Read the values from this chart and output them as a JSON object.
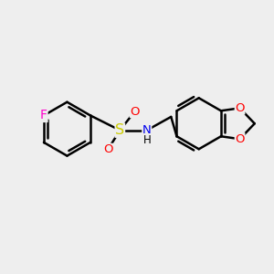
{
  "bg_color": "#eeeeee",
  "bond_color": "#000000",
  "bond_width": 1.8,
  "atom_colors": {
    "F": "#ff00cc",
    "S": "#cccc00",
    "O": "#ff0000",
    "N": "#0000ee",
    "H": "#000000"
  },
  "font_size": 9.5,
  "fig_size": [
    3.0,
    3.0
  ],
  "dpi": 100,
  "xlim": [
    0,
    10
  ],
  "ylim": [
    0,
    10
  ]
}
